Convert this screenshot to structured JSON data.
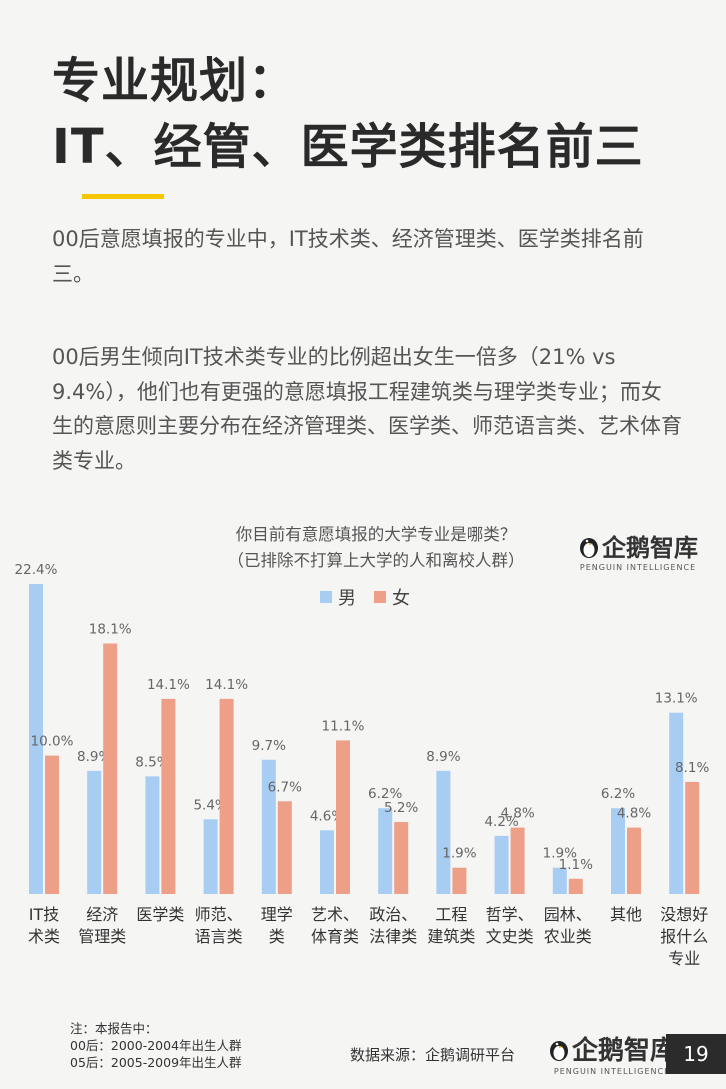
{
  "header": {
    "title_line1": "专业规划：",
    "title_line2": "IT、经管、医学类排名前三"
  },
  "paragraphs": {
    "p1": "00后意愿填报的专业中，IT技术类、经济管理类、医学类排名前三。",
    "p2": "00后男生倾向IT技术类专业的比例超出女生一倍多（21% vs 9.4%），他们也有更强的意愿填报工程建筑类与理学类专业；而女生的意愿则主要分布在经济管理类、医学类、师范语言类、艺术体育类专业。"
  },
  "logo": {
    "name": "企鹅智库",
    "subtitle": "PENGUIN INTELLIGENCE"
  },
  "chart_data": {
    "type": "bar",
    "title": "你目前有意愿填报的大学专业是哪类？",
    "subtitle": "（已排除不打算上大学的人和离校人群）",
    "categories": [
      [
        "IT技",
        "术类"
      ],
      [
        "经济",
        "管理类"
      ],
      [
        "医学类"
      ],
      [
        "师范、",
        "语言类"
      ],
      [
        "理学",
        "类"
      ],
      [
        "艺术、",
        "体育类"
      ],
      [
        "政治、",
        "法律类"
      ],
      [
        "工程",
        "建筑类"
      ],
      [
        "哲学、",
        "文史类"
      ],
      [
        "园林、",
        "农业类"
      ],
      [
        "其他"
      ],
      [
        "没想好",
        "报什么",
        "专业"
      ]
    ],
    "series": [
      {
        "name": "男",
        "color": "#a8cdf2",
        "values": [
          22.4,
          8.9,
          8.5,
          5.4,
          9.7,
          4.6,
          6.2,
          8.9,
          4.2,
          1.9,
          6.2,
          13.1
        ],
        "labels": [
          "22.4%",
          "8.9%",
          "8.5%",
          "5.4%",
          "9.7%",
          "4.6%",
          "6.2%",
          "8.9%",
          "4.2%",
          "1.9%",
          "6.2%",
          "13.1%"
        ]
      },
      {
        "name": "女",
        "color": "#ee9f88",
        "values": [
          10.0,
          18.1,
          14.1,
          14.1,
          6.7,
          11.1,
          5.2,
          1.9,
          4.8,
          1.1,
          4.8,
          8.1
        ],
        "labels": [
          "10.0%",
          "18.1%",
          "14.1%",
          "14.1%",
          "6.7%",
          "11.1%",
          "5.2%",
          "1.9%",
          "4.8%",
          "1.1%",
          "4.8%",
          "8.1%"
        ]
      }
    ],
    "ylim": [
      0,
      22.4
    ],
    "legend": "top-center",
    "grid": false
  },
  "footer": {
    "note_line1": "注：本报告中：",
    "note_line2": "00后：2000-2004年出生人群",
    "note_line3": "05后：2005-2009年出生人群",
    "source": "数据来源：企鹅调研平台",
    "page": "19"
  }
}
